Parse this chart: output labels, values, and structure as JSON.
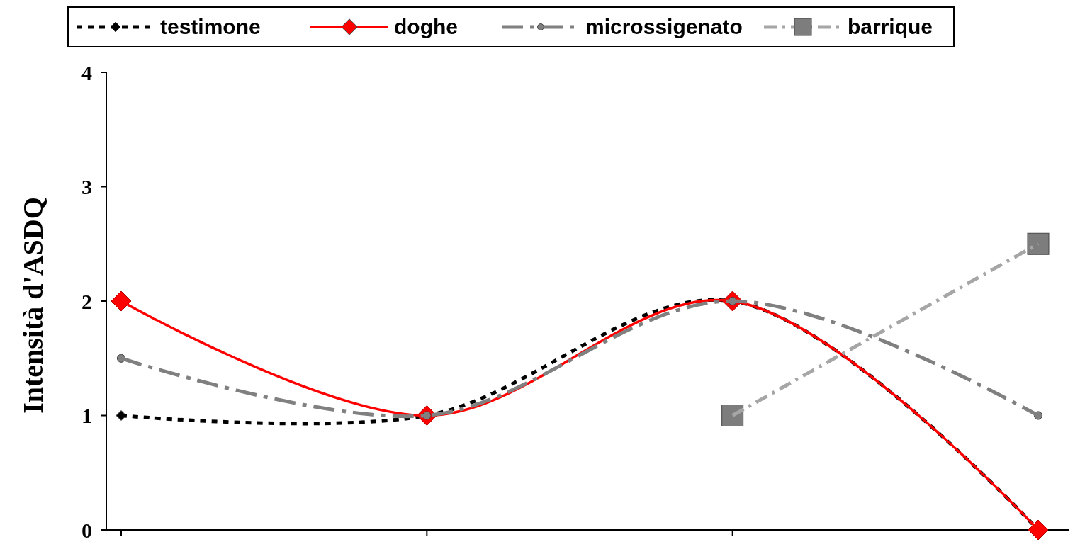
{
  "chart_data": {
    "type": "line",
    "ylabel": "Intensità d'ASDQ",
    "categories": [
      null,
      null,
      null,
      null
    ],
    "ylim": [
      0,
      4
    ],
    "yticks": [
      0,
      1,
      2,
      3,
      4
    ],
    "grid": false,
    "legend": "top",
    "series": [
      {
        "name": "testimone",
        "color": "#000000",
        "values": [
          1,
          1,
          2,
          0
        ],
        "marker": "diamond",
        "line_style": "dotted"
      },
      {
        "name": "doghe",
        "color": "#ff0000",
        "values": [
          2,
          1,
          2,
          0
        ],
        "marker": "diamond",
        "line_style": "solid"
      },
      {
        "name": "microssigenato",
        "color": "#808080",
        "values": [
          1.5,
          1,
          2,
          1
        ],
        "marker": "circle",
        "line_style": "dashed"
      },
      {
        "name": "barrique",
        "color": "#a6a6a6",
        "values": [
          null,
          null,
          1,
          2.5
        ],
        "marker": "square",
        "line_style": "dashed"
      }
    ]
  }
}
